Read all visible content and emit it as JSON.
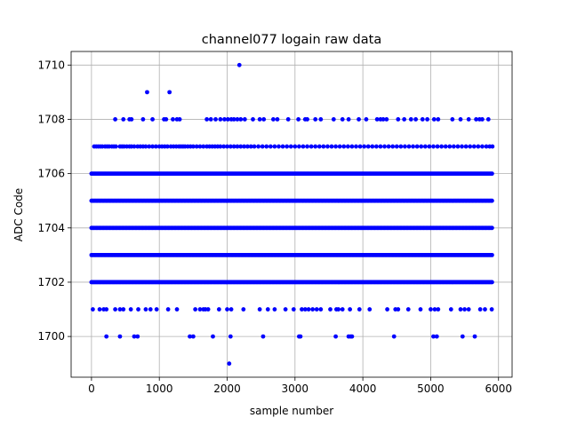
{
  "chart_data": {
    "type": "scatter",
    "title": "channel077 logain raw data",
    "xlabel": "sample number",
    "ylabel": "ADC Code",
    "xlim": [
      -300,
      6200
    ],
    "ylim": [
      1698.5,
      1710.5
    ],
    "xticks": [
      0,
      1000,
      2000,
      3000,
      4000,
      5000,
      6000
    ],
    "yticks": [
      1700,
      1702,
      1704,
      1706,
      1708,
      1710
    ],
    "grid": true,
    "marker_color": "#0000ff",
    "n_samples": 5920,
    "dense_levels": [
      1702,
      1703,
      1704,
      1705,
      1706
    ],
    "series": [
      {
        "values_by_level": [
          {
            "y": 1707,
            "x": [
              40,
              70,
              100,
              130,
              160,
              200,
              230,
              260,
              300,
              330,
              360,
              420,
              450,
              480,
              520,
              560,
              590,
              630,
              680,
              720,
              760,
              800,
              850,
              900,
              950,
              1000,
              1040,
              1080,
              1120,
              1170,
              1210,
              1250,
              1290,
              1320,
              1350,
              1380,
              1420,
              1460,
              1500,
              1550,
              1600,
              1650,
              1700,
              1740,
              1780,
              1820,
              1860,
              1900,
              1950,
              2000,
              2050,
              2100,
              2150,
              2200,
              2250,
              2300,
              2350,
              2400,
              2460,
              2520,
              2580,
              2640,
              2700,
              2760,
              2820,
              2880,
              2940,
              3000,
              3060,
              3120,
              3180,
              3240,
              3300,
              3360,
              3420,
              3480,
              3540,
              3600,
              3660,
              3720,
              3780,
              3840,
              3900,
              3960,
              4020,
              4080,
              4140,
              4200,
              4260,
              4320,
              4380,
              4440,
              4500,
              4560,
              4620,
              4680,
              4740,
              4800,
              4860,
              4920,
              4980,
              5040,
              5100,
              5160,
              5220,
              5280,
              5340,
              5400,
              5460,
              5520,
              5580,
              5640,
              5700,
              5760,
              5820,
              5870,
              5910
            ]
          },
          {
            "y": 1708,
            "x": [
              350,
              470,
              560,
              590,
              760,
              900,
              1070,
              1100,
              1200,
              1260,
              1300,
              1700,
              1760,
              1830,
              1900,
              1960,
              2010,
              2060,
              2100,
              2150,
              2200,
              2260,
              2380,
              2480,
              2540,
              2680,
              2740,
              2900,
              3050,
              3150,
              3180,
              3300,
              3380,
              3570,
              3700,
              3790,
              3940,
              4050,
              4210,
              4260,
              4300,
              4350,
              4520,
              4610,
              4710,
              4780,
              4880,
              4950,
              5050,
              5110,
              5320,
              5440,
              5560,
              5670,
              5720,
              5760,
              5850
            ]
          },
          {
            "y": 1709,
            "x": [
              820,
              1150
            ]
          },
          {
            "y": 1710,
            "x": [
              2180
            ]
          },
          {
            "y": 1701,
            "x": [
              20,
              120,
              180,
              220,
              350,
              420,
              470,
              580,
              690,
              800,
              870,
              960,
              1130,
              1260,
              1530,
              1600,
              1650,
              1680,
              1720,
              1880,
              2000,
              2060,
              2240,
              2480,
              2600,
              2700,
              2860,
              2980,
              3100,
              3150,
              3200,
              3260,
              3320,
              3380,
              3520,
              3610,
              3640,
              3700,
              3810,
              3950,
              4100,
              4360,
              4480,
              4520,
              4670,
              4850,
              5000,
              5060,
              5110,
              5300,
              5440,
              5500,
              5560,
              5730,
              5800,
              5900
            ]
          },
          {
            "y": 1700,
            "x": [
              220,
              420,
              630,
              680,
              1450,
              1500,
              1790,
              2050,
              2530,
              3060,
              3080,
              3600,
              3790,
              3820,
              3840,
              4460,
              5040,
              5090,
              5470,
              5650
            ]
          },
          {
            "y": 1699,
            "x": [
              2030
            ]
          }
        ]
      }
    ]
  }
}
